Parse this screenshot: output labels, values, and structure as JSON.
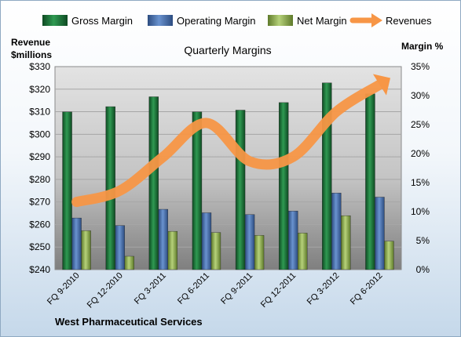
{
  "chart_data": {
    "type": "bar",
    "title": "Quarterly Margins",
    "company": "West Pharmaceutical Services",
    "left_axis_label_line1": "Revenue",
    "left_axis_label_line2": "$millions",
    "right_axis_label": "Margin %",
    "categories": [
      "FQ 9-2010",
      "FQ 12-2010",
      "FQ 3-2011",
      "FQ 6-2011",
      "FQ 9-2011",
      "FQ 12-2011",
      "FQ 3-2012",
      "FQ 6-2012"
    ],
    "left_ylim": [
      240,
      330
    ],
    "left_ticks": [
      "$240",
      "$250",
      "$260",
      "$270",
      "$280",
      "$290",
      "$300",
      "$310",
      "$320",
      "$330"
    ],
    "right_ylim": [
      0,
      35
    ],
    "right_ticks": [
      "0%",
      "5%",
      "10%",
      "15%",
      "20%",
      "25%",
      "30%",
      "35%"
    ],
    "series": [
      {
        "name": "Gross Margin",
        "axis": "right",
        "color": "#1f7a3c",
        "values": [
          27.2,
          28.1,
          29.8,
          27.2,
          27.5,
          28.8,
          32.2,
          30.3
        ]
      },
      {
        "name": "Operating Margin",
        "axis": "right",
        "color": "#4a74b4",
        "values": [
          8.9,
          7.6,
          10.4,
          9.8,
          9.5,
          10.1,
          13.2,
          12.5
        ]
      },
      {
        "name": "Net Margin",
        "axis": "right",
        "color": "#9bbb59",
        "values": [
          6.7,
          2.3,
          6.6,
          6.4,
          5.9,
          6.3,
          9.3,
          4.9
        ]
      },
      {
        "name": "Revenues",
        "axis": "left",
        "color": "#f79646",
        "type": "line",
        "values": [
          270,
          275,
          290,
          305,
          288,
          290,
          310,
          322
        ]
      }
    ],
    "grid": true,
    "legend_position": "top"
  }
}
